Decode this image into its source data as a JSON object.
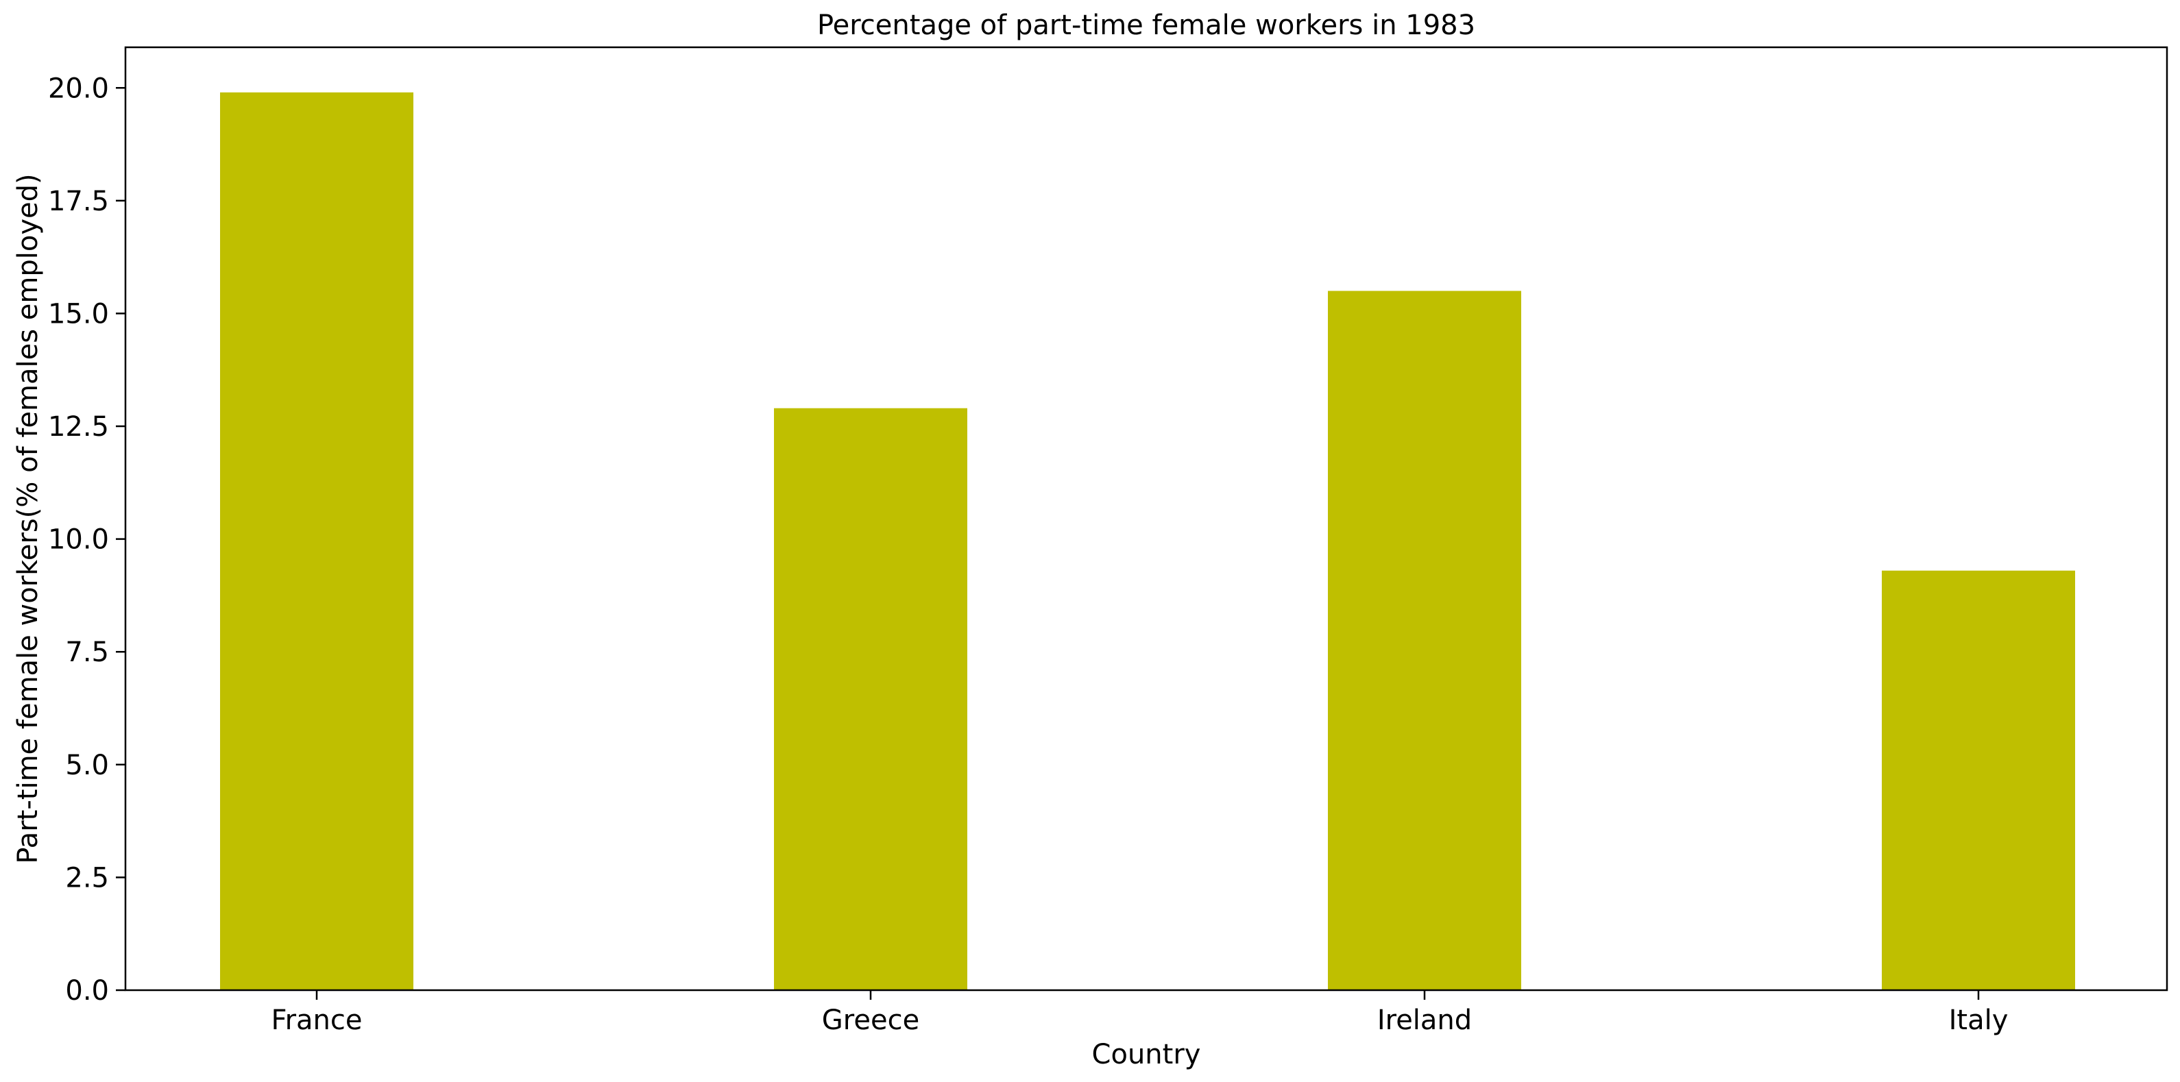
{
  "chart_data": {
    "type": "bar",
    "title": "Percentage of part-time female workers in 1983",
    "xlabel": "Country",
    "ylabel": "Part-time female workers(% of females employed)",
    "categories": [
      "France",
      "Greece",
      "Ireland",
      "Italy"
    ],
    "series": [
      {
        "values": [
          19.9,
          12.9,
          15.5,
          9.3
        ],
        "color": "#bfbf00"
      }
    ],
    "ylim": [
      0,
      20.9
    ],
    "yticks": [
      0.0,
      2.5,
      5.0,
      7.5,
      10.0,
      12.5,
      15.0,
      17.5,
      20.0
    ],
    "ytick_labels": [
      "0.0",
      "2.5",
      "5.0",
      "7.5",
      "10.0",
      "12.5",
      "15.0",
      "17.5",
      "20.0"
    ],
    "grid": false,
    "legend": "none"
  }
}
